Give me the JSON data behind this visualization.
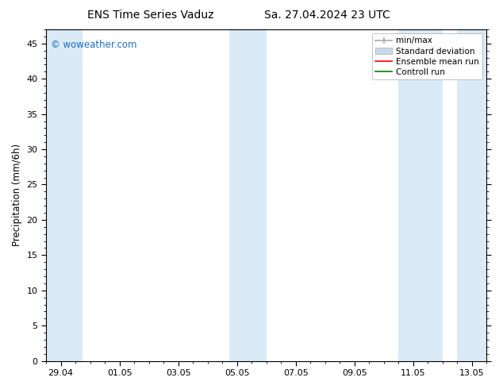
{
  "title_left": "ENS Time Series Vaduz",
  "title_right": "Sa. 27.04.2024 23 UTC",
  "ylabel": "Precipitation (mm/6h)",
  "ylim": [
    0,
    47
  ],
  "yticks": [
    0,
    5,
    10,
    15,
    20,
    25,
    30,
    35,
    40,
    45
  ],
  "xlabel_ticks": [
    "29.04",
    "01.05",
    "03.05",
    "05.05",
    "07.05",
    "09.05",
    "11.05",
    "13.05"
  ],
  "tick_x": [
    2,
    4,
    6,
    8,
    10,
    12,
    14,
    16
  ],
  "x_min": 1.5,
  "x_max": 16.5,
  "watermark": "© woweather.com",
  "watermark_color": "#1a6fc4",
  "bg_color": "#ffffff",
  "plot_bg_color": "#ffffff",
  "shaded_band_color": "#daeaf7",
  "shaded_regions": [
    [
      1.5,
      2.75
    ],
    [
      7.75,
      9.0
    ],
    [
      13.5,
      15.0
    ],
    [
      15.5,
      16.5
    ]
  ],
  "legend_labels": [
    "min/max",
    "Standard deviation",
    "Ensemble mean run",
    "Controll run"
  ],
  "legend_colors": [
    "#aaaaaa",
    "#c8daea",
    "#ff0000",
    "#008000"
  ],
  "title_fontsize": 10,
  "tick_fontsize": 8,
  "legend_fontsize": 7.5,
  "ylabel_fontsize": 8.5
}
